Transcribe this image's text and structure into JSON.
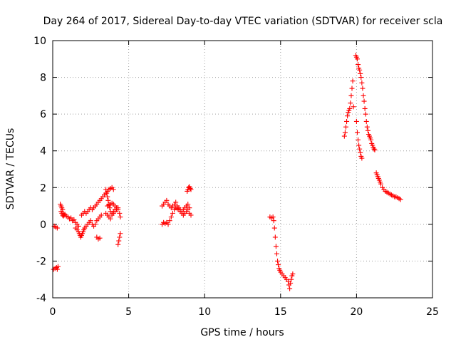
{
  "chart_data": {
    "type": "scatter",
    "title": "Day 264 of 2017, Sidereal Day-to-day VTEC variation (SDTVAR) for receiver scla",
    "xlabel": "GPS time / hours",
    "ylabel": "SDTVAR / TECUs",
    "xlim": [
      0,
      25
    ],
    "ylim": [
      -4,
      10
    ],
    "xticks": [
      0,
      5,
      10,
      15,
      20,
      25
    ],
    "yticks": [
      -4,
      -2,
      0,
      2,
      4,
      6,
      8,
      10
    ],
    "xtick_labels": [
      "0",
      "5",
      "10",
      "15",
      "20",
      "25"
    ],
    "ytick_labels": [
      "-4",
      "-2",
      "0",
      "2",
      "4",
      "6",
      "8",
      "10"
    ],
    "grid": true,
    "marker": "+",
    "color": "#ff0000",
    "series": [
      {
        "name": "scla",
        "x": [
          0.05,
          0.15,
          0.25,
          0.3,
          0.35,
          0.1,
          0.2,
          0.3,
          0.5,
          0.55,
          0.6,
          0.65,
          0.7,
          0.55,
          0.6,
          0.65,
          0.7,
          0.75,
          0.8,
          0.9,
          1.0,
          1.1,
          1.2,
          1.3,
          1.4,
          1.5,
          1.6,
          1.7,
          1.5,
          1.6,
          1.7,
          1.75,
          1.8,
          1.85,
          1.9,
          1.95,
          2.0,
          2.05,
          2.1,
          2.2,
          2.3,
          2.4,
          2.5,
          2.6,
          2.7,
          2.8,
          2.9,
          3.0,
          3.1,
          3.2,
          1.9,
          2.0,
          2.1,
          2.2,
          2.3,
          2.4,
          2.5,
          2.6,
          2.7,
          2.8,
          2.9,
          3.0,
          3.1,
          3.2,
          3.3,
          3.4,
          3.5,
          3.6,
          3.7,
          3.8,
          3.9,
          4.0,
          2.9,
          3.0,
          3.1,
          3.5,
          3.55,
          3.6,
          3.65,
          3.7,
          3.75,
          3.8,
          3.9,
          4.0,
          4.1,
          3.5,
          3.6,
          3.7,
          3.8,
          3.9,
          4.0,
          4.1,
          4.2,
          4.3,
          4.4,
          4.45,
          3.6,
          3.7,
          3.8,
          3.9,
          4.0,
          4.1,
          4.2,
          4.3,
          4.3,
          4.35,
          4.4,
          4.45,
          7.2,
          7.3,
          7.4,
          7.5,
          7.6,
          7.7,
          7.8,
          7.9,
          8.0,
          8.1,
          8.2,
          8.3,
          8.4,
          8.5,
          8.6,
          8.7,
          8.8,
          8.9,
          9.0,
          9.1,
          7.2,
          7.3,
          7.4,
          7.5,
          7.6,
          7.7,
          7.8,
          7.9,
          8.0,
          8.1,
          8.2,
          8.3,
          8.4,
          8.5,
          8.6,
          8.7,
          8.8,
          8.9,
          9.0,
          8.85,
          8.9,
          8.95,
          9.0,
          9.05,
          9.1,
          14.3,
          14.4,
          14.5,
          14.55,
          14.6,
          14.65,
          14.7,
          14.75,
          14.8,
          14.85,
          14.9,
          14.95,
          15.0,
          15.1,
          15.2,
          15.3,
          15.4,
          15.5,
          15.55,
          15.6,
          15.65,
          15.7,
          15.75,
          15.8,
          19.2,
          19.25,
          19.3,
          19.35,
          19.4,
          19.45,
          19.5,
          19.55,
          19.6,
          19.65,
          19.7,
          19.75,
          19.8,
          19.95,
          20.0,
          20.05,
          20.1,
          20.15,
          20.2,
          20.25,
          20.3,
          20.35,
          20.4,
          20.45,
          20.5,
          20.55,
          20.6,
          20.65,
          20.7,
          20.75,
          20.8,
          20.85,
          20.9,
          20.95,
          21.0,
          21.05,
          21.1,
          21.15,
          21.2,
          20.0,
          20.05,
          20.1,
          20.15,
          20.2,
          20.25,
          20.3,
          20.35,
          21.3,
          21.35,
          21.4,
          21.45,
          21.5,
          21.55,
          21.6,
          21.7,
          21.8,
          21.9,
          22.0,
          22.1,
          22.2,
          22.3,
          22.4,
          22.5,
          22.6,
          22.7,
          22.8,
          22.9
        ],
        "y": [
          -2.45,
          -2.4,
          -2.35,
          -2.45,
          -2.3,
          -0.1,
          -0.15,
          -0.2,
          1.1,
          1.0,
          0.9,
          0.8,
          0.6,
          0.7,
          0.6,
          0.5,
          0.45,
          0.5,
          0.55,
          0.45,
          0.4,
          0.3,
          0.35,
          0.2,
          0.25,
          0.1,
          0.0,
          -0.1,
          -0.2,
          -0.3,
          -0.4,
          -0.5,
          -0.6,
          -0.7,
          -0.6,
          -0.5,
          -0.4,
          -0.3,
          -0.2,
          -0.1,
          0.0,
          0.1,
          0.2,
          0.0,
          -0.1,
          0.0,
          0.2,
          0.3,
          0.4,
          0.5,
          0.5,
          0.6,
          0.7,
          0.6,
          0.7,
          0.8,
          0.9,
          0.8,
          0.9,
          1.0,
          1.1,
          1.2,
          1.3,
          1.4,
          1.5,
          1.6,
          1.7,
          1.8,
          1.9,
          1.95,
          2.0,
          1.9,
          -0.7,
          -0.8,
          -0.75,
          1.9,
          1.7,
          1.5,
          1.3,
          1.1,
          0.9,
          0.7,
          0.6,
          0.7,
          0.8,
          0.6,
          0.5,
          0.4,
          0.3,
          0.5,
          0.6,
          0.7,
          0.8,
          0.9,
          0.6,
          0.4,
          1.0,
          1.05,
          1.1,
          1.15,
          1.1,
          1.0,
          0.9,
          0.8,
          -1.1,
          -0.9,
          -0.7,
          -0.5,
          0.0,
          0.1,
          0.05,
          0.1,
          0.0,
          0.2,
          0.4,
          0.6,
          0.8,
          0.9,
          0.85,
          0.8,
          0.7,
          0.6,
          0.5,
          0.6,
          0.7,
          0.8,
          0.6,
          0.5,
          1.0,
          1.1,
          1.2,
          1.3,
          1.1,
          1.0,
          0.9,
          1.0,
          1.1,
          1.2,
          1.0,
          0.9,
          0.8,
          0.7,
          0.8,
          0.9,
          1.0,
          1.1,
          0.9,
          1.8,
          1.9,
          2.0,
          2.05,
          1.95,
          1.9,
          0.4,
          0.35,
          0.4,
          0.2,
          -0.2,
          -0.7,
          -1.2,
          -1.6,
          -2.0,
          -2.2,
          -2.4,
          -2.5,
          -2.6,
          -2.7,
          -2.8,
          -2.9,
          -3.0,
          -3.1,
          -3.3,
          -3.5,
          -3.2,
          -3.0,
          -2.8,
          -2.7,
          4.8,
          5.0,
          5.3,
          5.6,
          5.9,
          6.1,
          6.2,
          6.3,
          6.6,
          7.0,
          7.4,
          7.8,
          6.4,
          9.2,
          9.1,
          9.0,
          8.7,
          8.5,
          8.4,
          8.2,
          8.0,
          7.7,
          7.4,
          7.0,
          6.7,
          6.3,
          6.0,
          5.6,
          5.3,
          5.1,
          4.9,
          4.8,
          4.7,
          4.6,
          4.4,
          4.3,
          4.2,
          4.1,
          4.05,
          5.6,
          5.0,
          4.6,
          4.3,
          4.1,
          3.9,
          3.7,
          3.6,
          2.8,
          2.7,
          2.6,
          2.5,
          2.4,
          2.3,
          2.2,
          2.0,
          1.9,
          1.8,
          1.75,
          1.7,
          1.65,
          1.6,
          1.55,
          1.5,
          1.5,
          1.45,
          1.4,
          1.35
        ]
      }
    ]
  }
}
